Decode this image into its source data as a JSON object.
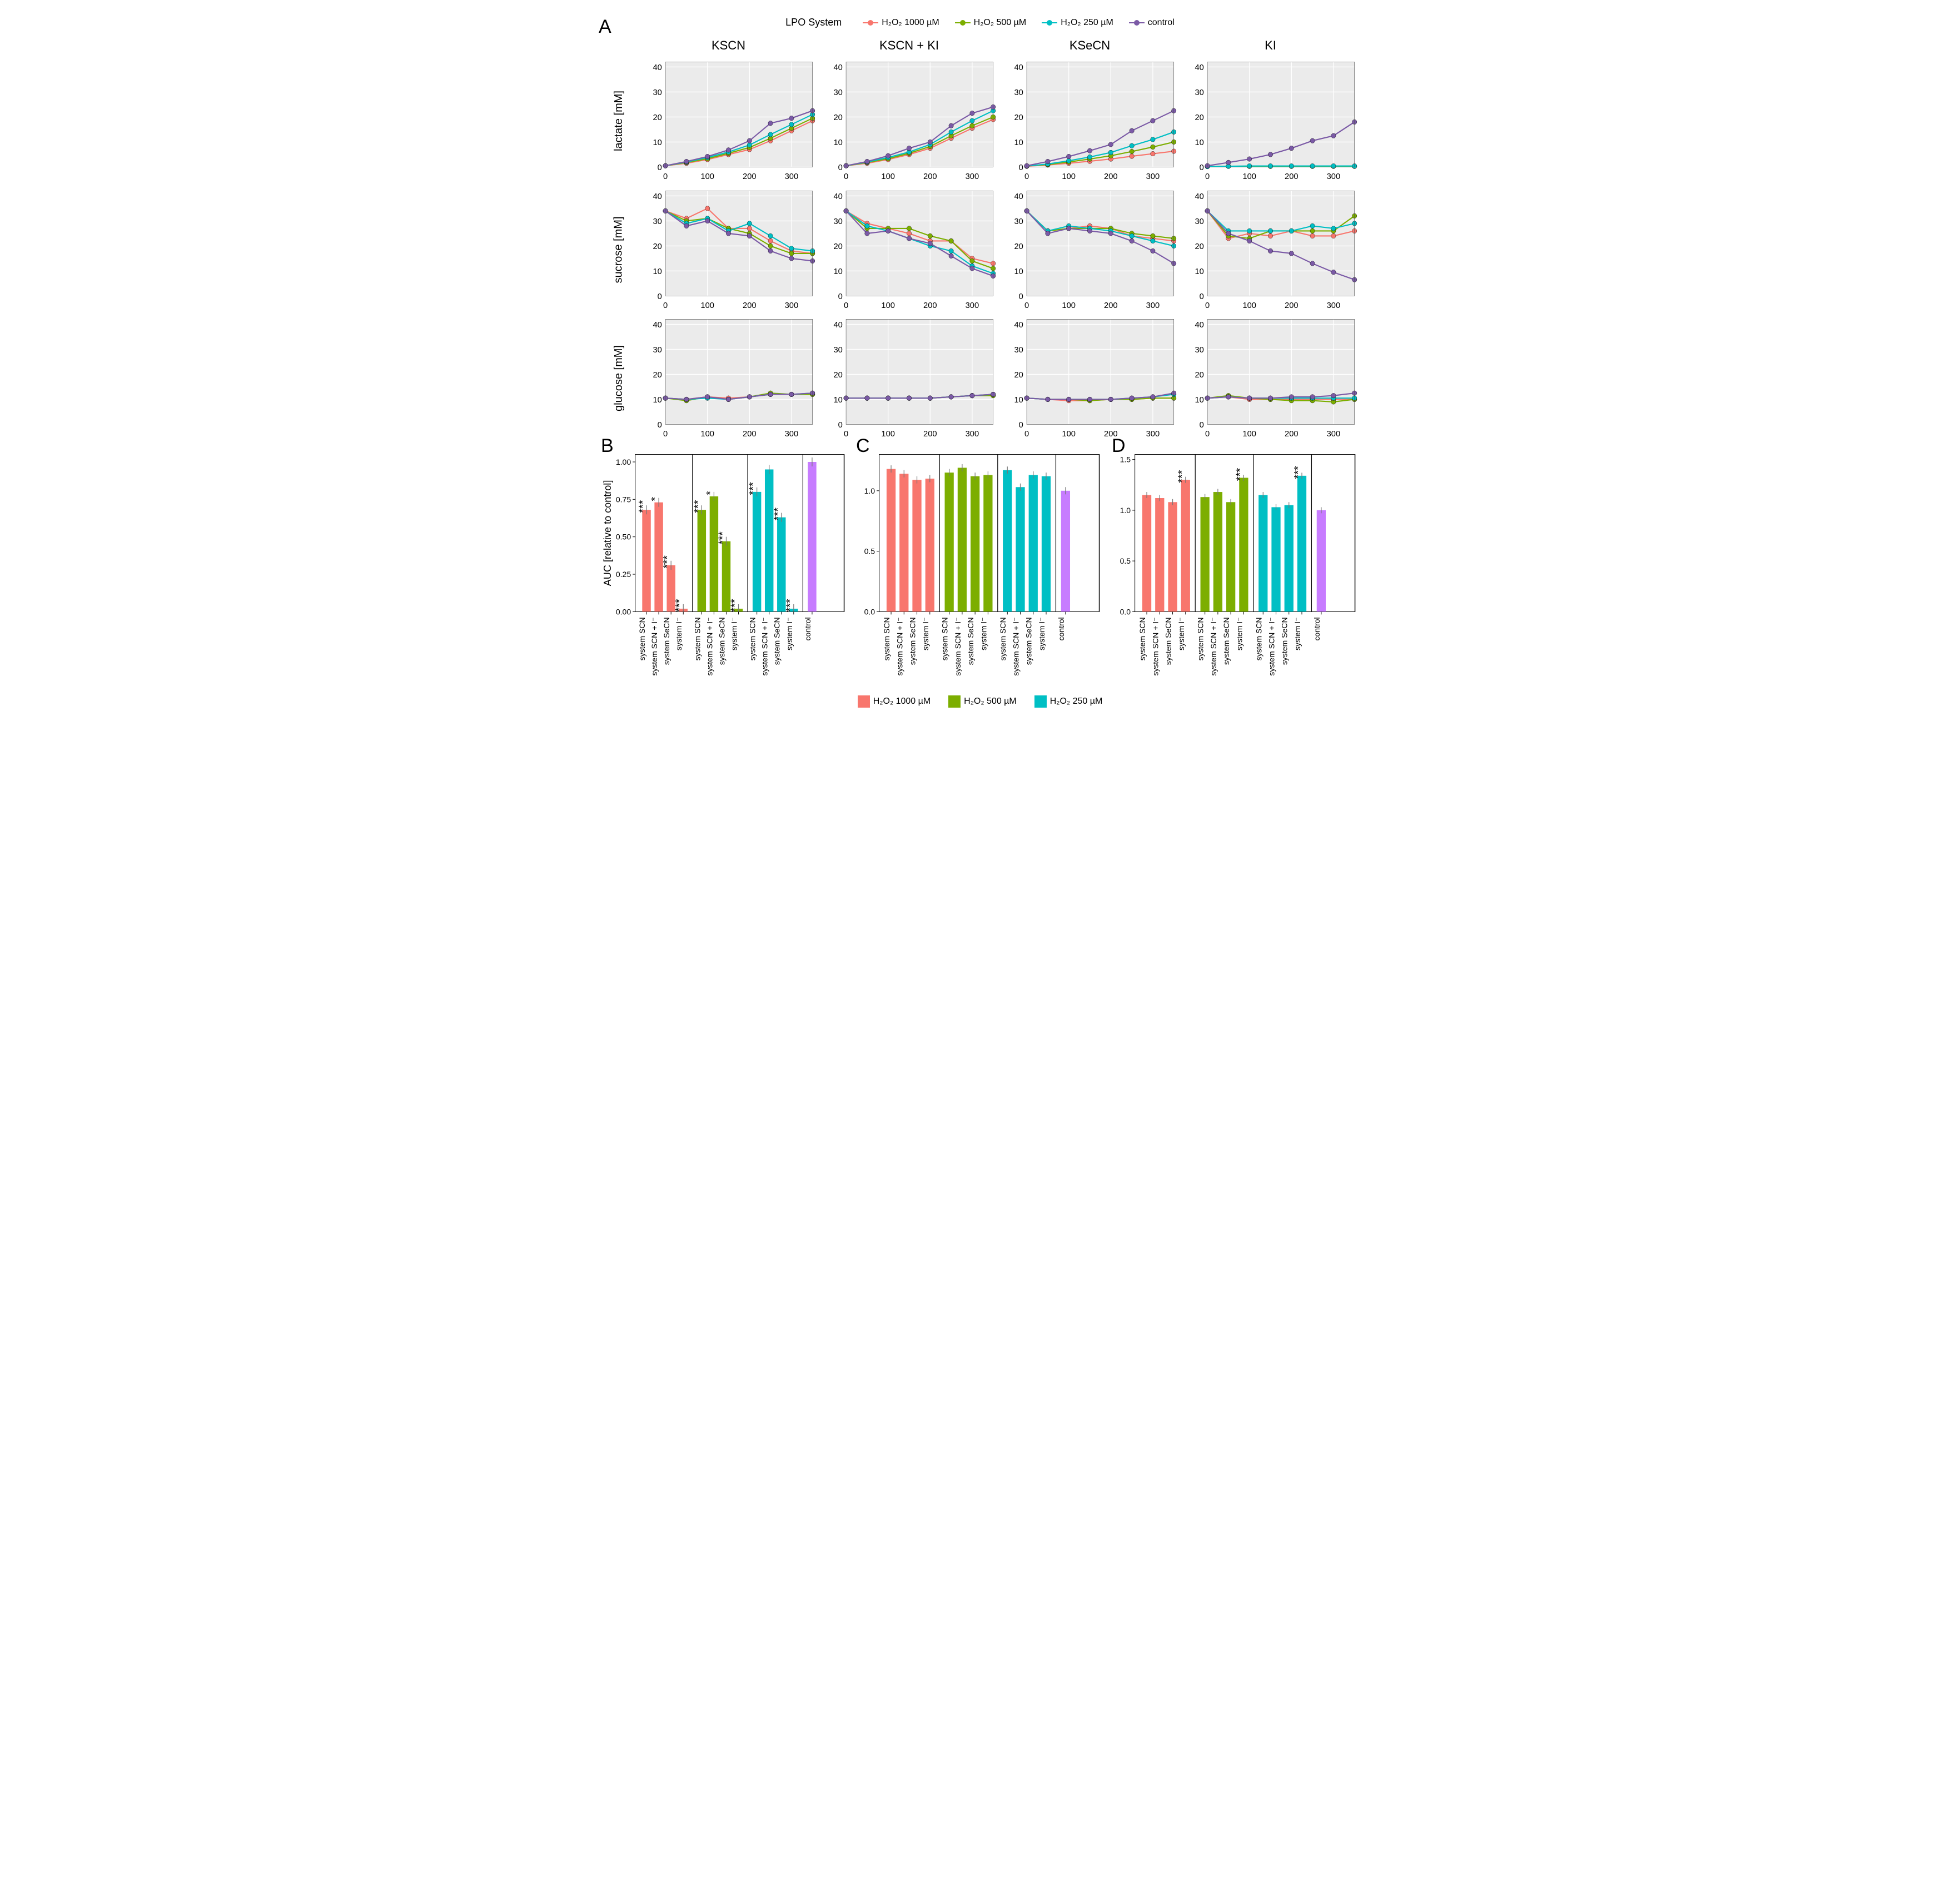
{
  "palette": {
    "h1000": "#f8766d",
    "h500": "#7cae00",
    "h250": "#00bfc4",
    "control": "#c77cff",
    "line_h1000": "#f8766d",
    "line_h500": "#7cae00",
    "line_h250": "#00bfc4",
    "line_control": "#7b5aa6",
    "plot_bg": "#ebebeb",
    "strip_bg": "#d9d9d9",
    "grid_white": "#ffffff",
    "axis": "#4d4d4d",
    "black": "#000000"
  },
  "panelA": {
    "legend_title": "LPO System",
    "legend_items": [
      {
        "label": "H₂O₂ 1000 µM",
        "color_key": "line_h1000"
      },
      {
        "label": "H₂O₂ 500 µM",
        "color_key": "line_h500"
      },
      {
        "label": "H₂O₂ 250 µM",
        "color_key": "line_h250"
      },
      {
        "label": "control",
        "color_key": "line_control"
      }
    ],
    "col_titles": [
      "KSCN",
      "KSCN + KI",
      "KSeCN",
      "KI"
    ],
    "row_titles": [
      "lactate [mM]",
      "sucrose [mM]",
      "glucose [mM]"
    ],
    "xlim": [
      0,
      350
    ],
    "ylim": [
      0,
      42
    ],
    "xticks": [
      0,
      100,
      200,
      300
    ],
    "yticks": [
      0,
      10,
      20,
      30,
      40
    ],
    "x_values": [
      0,
      50,
      100,
      150,
      200,
      250,
      300,
      350
    ],
    "series_order": [
      "h1000",
      "h500",
      "h250",
      "control"
    ],
    "series_colors": {
      "h1000": "line_h1000",
      "h500": "line_h500",
      "h250": "line_h250",
      "control": "line_control"
    },
    "data": {
      "lactate": {
        "KSCN": {
          "h1000": [
            0.5,
            1.5,
            3.0,
            5.0,
            7.0,
            10.5,
            14.5,
            18.5
          ],
          "h500": [
            0.5,
            1.8,
            3.3,
            5.5,
            7.8,
            11.5,
            15.5,
            19.5
          ],
          "h250": [
            0.5,
            2.0,
            3.8,
            6.0,
            8.8,
            13.0,
            17.0,
            21.0
          ],
          "control": [
            0.5,
            2.2,
            4.2,
            6.8,
            10.5,
            17.5,
            19.5,
            22.5
          ]
        },
        "KSCN + KI": {
          "h1000": [
            0.5,
            1.5,
            3.0,
            5.0,
            7.5,
            11.5,
            15.5,
            19.0
          ],
          "h500": [
            0.5,
            1.8,
            3.3,
            5.5,
            8.2,
            12.5,
            16.5,
            20.0
          ],
          "h250": [
            0.5,
            2.0,
            3.8,
            6.0,
            9.0,
            14.0,
            18.5,
            22.5
          ],
          "control": [
            0.5,
            2.2,
            4.5,
            7.5,
            10.0,
            16.5,
            21.5,
            24.0
          ]
        },
        "KSeCN": {
          "h1000": [
            0.3,
            0.8,
            1.5,
            2.3,
            3.2,
            4.3,
            5.3,
            6.3
          ],
          "h500": [
            0.4,
            1.0,
            2.0,
            3.2,
            4.5,
            6.2,
            8.0,
            10.0
          ],
          "h250": [
            0.4,
            1.2,
            2.5,
            4.0,
            5.8,
            8.5,
            11.0,
            14.0
          ],
          "control": [
            0.5,
            2.2,
            4.2,
            6.5,
            9.0,
            14.5,
            18.5,
            22.5
          ]
        },
        "KI": {
          "h1000": [
            0.2,
            0.3,
            0.3,
            0.3,
            0.3,
            0.3,
            0.3,
            0.3
          ],
          "h500": [
            0.2,
            0.3,
            0.3,
            0.3,
            0.3,
            0.3,
            0.3,
            0.3
          ],
          "h250": [
            0.2,
            0.3,
            0.4,
            0.4,
            0.4,
            0.4,
            0.4,
            0.4
          ],
          "control": [
            0.5,
            1.8,
            3.2,
            5.0,
            7.5,
            10.5,
            12.5,
            18.0
          ]
        }
      },
      "sucrose": {
        "KSCN": {
          "h1000": [
            34,
            31,
            35,
            27,
            27,
            22,
            18,
            17
          ],
          "h500": [
            34,
            30,
            31,
            27,
            25,
            20,
            17,
            17
          ],
          "h250": [
            34,
            29,
            31,
            26,
            29,
            24,
            19,
            18
          ],
          "control": [
            34,
            28,
            30,
            25,
            24,
            18,
            15,
            14
          ]
        },
        "KSCN + KI": {
          "h1000": [
            34,
            29,
            27,
            25,
            22,
            22,
            15,
            13
          ],
          "h500": [
            34,
            27,
            27,
            27,
            24,
            22,
            14,
            11
          ],
          "h250": [
            34,
            28,
            26,
            23,
            20,
            18,
            12,
            9
          ],
          "control": [
            34,
            25,
            26,
            23,
            21,
            16,
            11,
            8
          ]
        },
        "KSeCN": {
          "h1000": [
            34,
            26,
            27,
            28,
            27,
            24,
            23,
            22
          ],
          "h500": [
            34,
            26,
            27,
            27,
            27,
            25,
            24,
            23
          ],
          "h250": [
            34,
            26,
            28,
            27,
            26,
            24,
            22,
            20
          ],
          "control": [
            34,
            25,
            27,
            26,
            25,
            22,
            18,
            13
          ]
        },
        "KI": {
          "h1000": [
            34,
            23,
            25,
            24,
            26,
            24,
            24,
            26
          ],
          "h500": [
            34,
            24,
            23,
            26,
            26,
            26,
            26,
            32
          ],
          "h250": [
            34,
            26,
            26,
            26,
            26,
            28,
            27,
            29
          ],
          "control": [
            34,
            25,
            22,
            18,
            17,
            13,
            9.5,
            6.5
          ]
        }
      },
      "glucose": {
        "KSCN": {
          "h1000": [
            10.5,
            10,
            11,
            10.5,
            11,
            12,
            12,
            12
          ],
          "h500": [
            10.5,
            9.5,
            11,
            10,
            11,
            12.5,
            12,
            12
          ],
          "h250": [
            10.5,
            10,
            10.5,
            10,
            11,
            12,
            12,
            12.5
          ],
          "control": [
            10.5,
            10,
            11,
            10,
            11,
            12,
            12,
            12.5
          ]
        },
        "KSCN + KI": {
          "h1000": [
            10.5,
            10.5,
            10.5,
            10.5,
            10.5,
            11,
            11.5,
            12
          ],
          "h500": [
            10.5,
            10.5,
            10.5,
            10.5,
            10.5,
            11,
            11.5,
            11.5
          ],
          "h250": [
            10.5,
            10.5,
            10.5,
            10.5,
            10.5,
            11,
            11.5,
            12
          ],
          "control": [
            10.5,
            10.5,
            10.5,
            10.5,
            10.5,
            11,
            11.5,
            12
          ]
        },
        "KSeCN": {
          "h1000": [
            10.5,
            10,
            9.5,
            9.5,
            10,
            10,
            10.5,
            10.5
          ],
          "h500": [
            10.5,
            10,
            10,
            9.5,
            10,
            10,
            10.5,
            10.5
          ],
          "h250": [
            10.5,
            10,
            10,
            10,
            10,
            10.5,
            11,
            12
          ],
          "control": [
            10.5,
            10,
            10,
            10,
            10,
            10.5,
            11,
            12.5
          ]
        },
        "KI": {
          "h1000": [
            10.5,
            11,
            10,
            10,
            10,
            10,
            10,
            10
          ],
          "h500": [
            10.5,
            11.5,
            10.5,
            10,
            9.5,
            9.5,
            9,
            10
          ],
          "h250": [
            10.5,
            11,
            10.5,
            10.5,
            10.5,
            10.5,
            10.5,
            10.5
          ],
          "control": [
            10.5,
            11,
            10.5,
            10.5,
            11,
            11,
            11.5,
            12.5
          ]
        }
      }
    },
    "marker_size": 4,
    "line_width": 2,
    "tick_fontsize": 14,
    "title_fontsize": 22
  },
  "bar_shared": {
    "y_label": "AUC [relative to control]",
    "x_categories": [
      "system SCN",
      "system SCN + I⁻",
      "system SeCN",
      "system I⁻"
    ],
    "groups": [
      "h1000",
      "h500",
      "h250"
    ],
    "group_labels": {
      "h1000": "H₂O₂ 1000 µM",
      "h500": "H₂O₂ 500 µM",
      "h250": "H₂O₂ 250 µM"
    },
    "control_label": "control",
    "bar_width": 0.7,
    "err_half": 0.03,
    "err_color": "#777777",
    "tick_fontsize": 14,
    "ylabel_fontsize": 18
  },
  "panelB": {
    "ylim": [
      0,
      1.05
    ],
    "yticks": [
      0.0,
      0.25,
      0.5,
      0.75,
      1.0
    ],
    "values": {
      "h1000": [
        0.68,
        0.73,
        0.31,
        0.02
      ],
      "h500": [
        0.68,
        0.77,
        0.47,
        0.02
      ],
      "h250": [
        0.8,
        0.95,
        0.63,
        0.02
      ]
    },
    "control": 1.0,
    "sig": {
      "h1000": [
        "***",
        "*",
        "***",
        "***"
      ],
      "h500": [
        "***",
        "*",
        "***",
        "***"
      ],
      "h250": [
        "***",
        "",
        "***",
        "***"
      ]
    }
  },
  "panelC": {
    "ylim": [
      0,
      1.3
    ],
    "yticks": [
      0.0,
      0.5,
      1.0
    ],
    "values": {
      "h1000": [
        1.18,
        1.14,
        1.09,
        1.1
      ],
      "h500": [
        1.15,
        1.19,
        1.12,
        1.13
      ],
      "h250": [
        1.17,
        1.03,
        1.13,
        1.12
      ]
    },
    "control": 1.0,
    "sig": {
      "h1000": [
        "",
        "",
        "",
        ""
      ],
      "h500": [
        "",
        "",
        "",
        ""
      ],
      "h250": [
        "",
        "",
        "",
        ""
      ]
    }
  },
  "panelD": {
    "ylim": [
      0,
      1.55
    ],
    "yticks": [
      0.0,
      0.5,
      1.0,
      1.5
    ],
    "values": {
      "h1000": [
        1.15,
        1.12,
        1.08,
        1.3
      ],
      "h500": [
        1.13,
        1.18,
        1.08,
        1.32
      ],
      "h250": [
        1.15,
        1.03,
        1.05,
        1.34
      ]
    },
    "control": 1.0,
    "sig": {
      "h1000": [
        "",
        "",
        "",
        "***"
      ],
      "h500": [
        "",
        "",
        "",
        "***"
      ],
      "h250": [
        "",
        "",
        "",
        "***"
      ]
    }
  },
  "labels": {
    "A": "A",
    "B": "B",
    "C": "C",
    "D": "D"
  }
}
